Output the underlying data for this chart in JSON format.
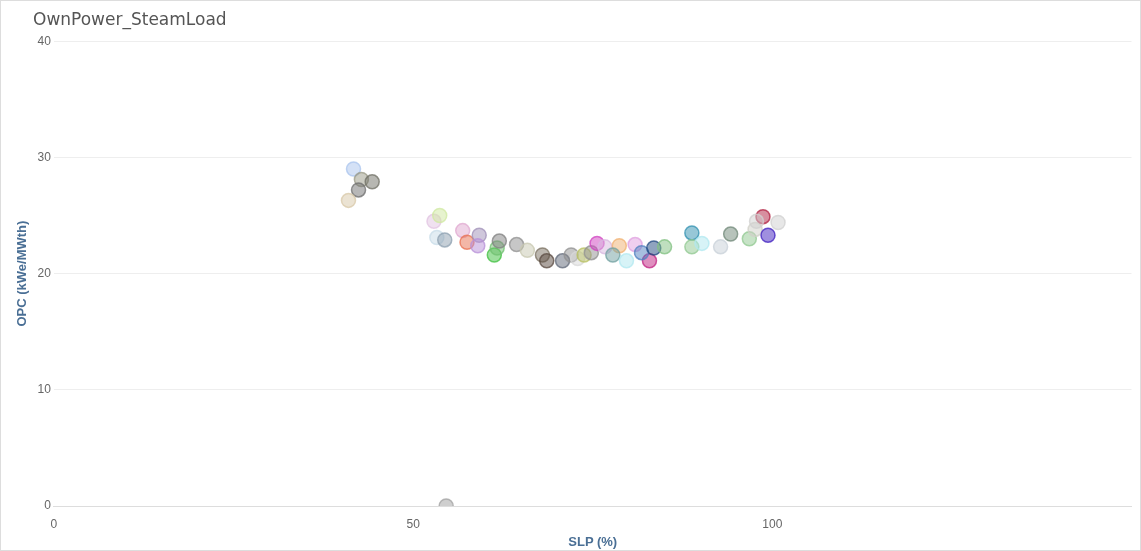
{
  "chart_data": {
    "type": "scatter",
    "title": "OwnPower_SteamLoad",
    "xlabel": "SLP (%)",
    "ylabel": "OPC (kWe/MWth)",
    "x": [
      41.7,
      42.8,
      42.4,
      44.3,
      41.0,
      52.9,
      53.7,
      53.3,
      54.4,
      56.9,
      57.5,
      59.2,
      59.0,
      61.3,
      61.7,
      62.0,
      64.4,
      65.9,
      68.0,
      68.6,
      70.8,
      72.0,
      72.9,
      73.8,
      74.8,
      75.6,
      76.7,
      78.7,
      77.8,
      79.7,
      80.9,
      82.9,
      81.8,
      83.5,
      85.0,
      88.8,
      88.8,
      90.2,
      92.8,
      94.2,
      96.8,
      97.6,
      98.7,
      97.8,
      99.4,
      100.8,
      54.6
    ],
    "values": [
      29.0,
      28.1,
      27.2,
      27.9,
      26.3,
      24.5,
      25.0,
      23.1,
      22.9,
      23.7,
      22.7,
      23.3,
      22.4,
      21.6,
      22.2,
      22.8,
      22.5,
      22.0,
      21.6,
      21.1,
      21.1,
      21.6,
      21.3,
      21.6,
      21.8,
      22.6,
      22.3,
      22.4,
      21.6,
      21.1,
      22.5,
      21.1,
      21.8,
      22.2,
      22.3,
      23.5,
      22.3,
      22.6,
      22.3,
      23.4,
      23.0,
      23.8,
      24.9,
      24.5,
      23.3,
      24.4,
      0
    ],
    "colors": [
      "#a9c4ee",
      "#9a9a86",
      "#6f6f6f",
      "#707066",
      "#d8c8a8",
      "#e2c4e2",
      "#cfe8a0",
      "#c8dce8",
      "#8ea0b0",
      "#e0a8d0",
      "#e87050",
      "#a090b8",
      "#b890d8",
      "#40c040",
      "#70c070",
      "#808080",
      "#909090",
      "#c8c8b0",
      "#7a7060",
      "#5a4a40",
      "#606878",
      "#909090",
      "#d8d8d8",
      "#b8c060",
      "#909090",
      "#d040c0",
      "#d8b8e0",
      "#f0b070",
      "#70a0a0",
      "#b0e8f0",
      "#e0a0e0",
      "#c02080",
      "#5080c0",
      "#204880",
      "#80c080",
      "#3090b0",
      "#90c890",
      "#b0e8f0",
      "#c8d0d8",
      "#708878",
      "#90c890",
      "#d0d0c8",
      "#b02040",
      "#d0d0d0",
      "#4020c0",
      "#d0d0d0",
      "#a0a0a0"
    ],
    "xlim": [
      0,
      150
    ],
    "xticks": [
      0,
      50,
      100
    ],
    "ylim": [
      0,
      40
    ],
    "yticks": [
      0,
      10,
      20,
      30,
      40
    ],
    "grid": "y",
    "marker": "circle",
    "legend": false
  }
}
